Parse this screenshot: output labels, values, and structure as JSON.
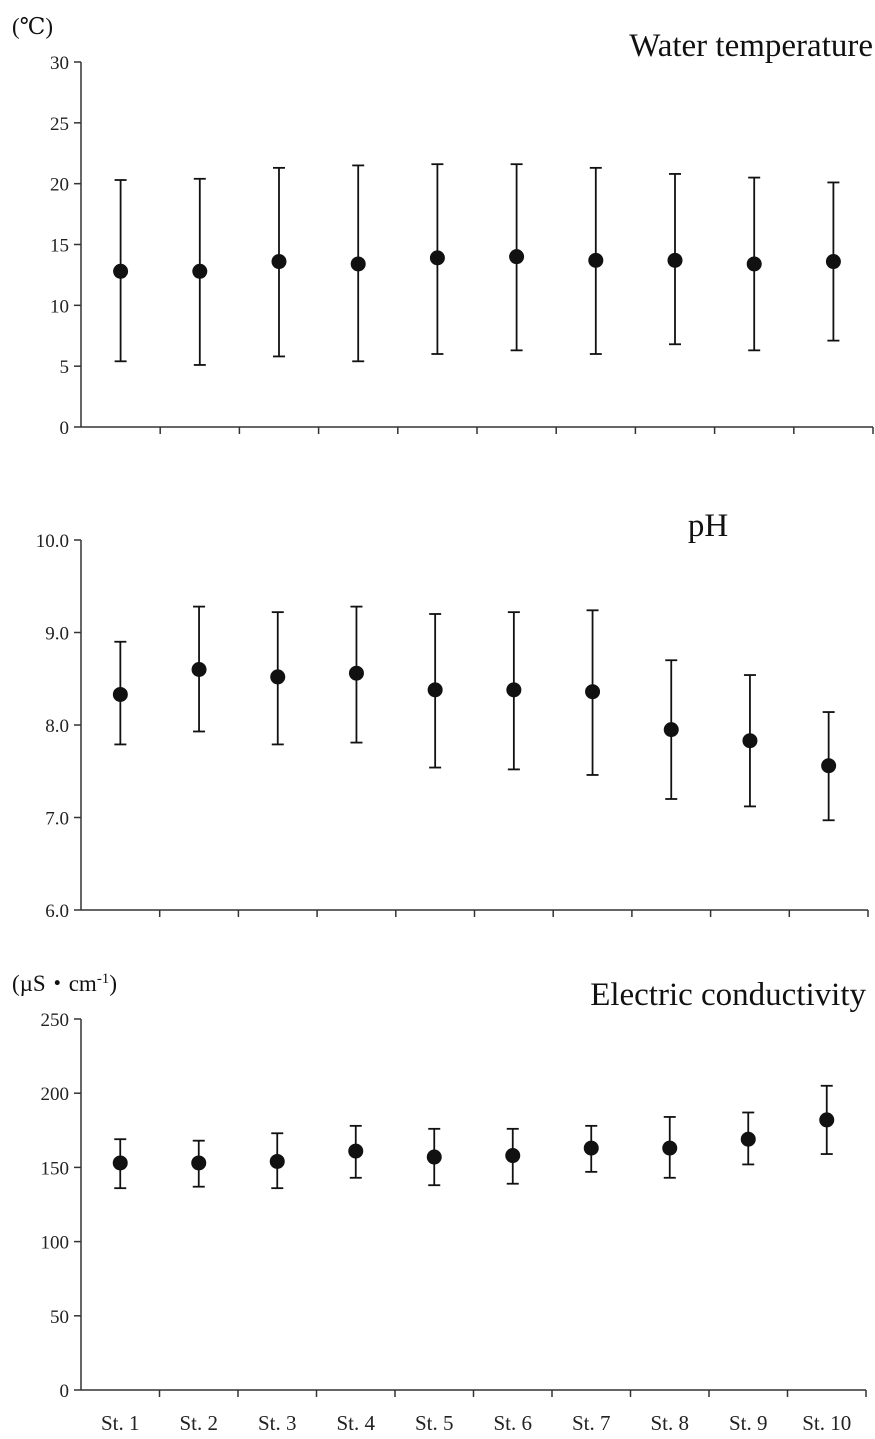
{
  "chart_data": [
    {
      "type": "scatter",
      "title": "Water temperature",
      "ylabel": "(℃)",
      "categories": [
        "St. 1",
        "St. 2",
        "St. 3",
        "St. 4",
        "St. 5",
        "St. 6",
        "St. 7",
        "St. 8",
        "St. 9",
        "St. 10"
      ],
      "ylim": [
        0,
        30
      ],
      "yticks": [
        0,
        5,
        10,
        15,
        20,
        25,
        30
      ],
      "ytick_labels": [
        "0",
        "5",
        "10",
        "15",
        "20",
        "25",
        "30"
      ],
      "values": [
        12.8,
        12.8,
        13.6,
        13.4,
        13.9,
        14.0,
        13.7,
        13.7,
        13.4,
        13.6
      ],
      "err_low": [
        5.4,
        5.1,
        5.8,
        5.4,
        6.0,
        6.3,
        6.0,
        6.8,
        6.3,
        7.1
      ],
      "err_high": [
        20.3,
        20.4,
        21.3,
        21.5,
        21.6,
        21.6,
        21.3,
        20.8,
        20.5,
        20.1
      ],
      "show_xlabels": false,
      "grid": false
    },
    {
      "type": "scatter",
      "title": "pH",
      "ylabel": "",
      "categories": [
        "St. 1",
        "St. 2",
        "St. 3",
        "St. 4",
        "St. 5",
        "St. 6",
        "St. 7",
        "St. 8",
        "St. 9",
        "St. 10"
      ],
      "ylim": [
        6.0,
        10.0
      ],
      "yticks": [
        6.0,
        7.0,
        8.0,
        9.0,
        10.0
      ],
      "ytick_labels": [
        "6.0",
        "7.0",
        "8.0",
        "9.0",
        "10.0"
      ],
      "values": [
        8.33,
        8.6,
        8.52,
        8.56,
        8.38,
        8.38,
        8.36,
        7.95,
        7.83,
        7.56
      ],
      "err_low": [
        7.79,
        7.93,
        7.79,
        7.81,
        7.54,
        7.52,
        7.46,
        7.2,
        7.12,
        6.97
      ],
      "err_high": [
        8.9,
        9.28,
        9.22,
        9.28,
        9.2,
        9.22,
        9.24,
        8.7,
        8.54,
        8.14
      ],
      "show_xlabels": false,
      "grid": false
    },
    {
      "type": "scatter",
      "title": "Electric conductivity",
      "ylabel": "(µS・cm-1)",
      "ylabel_main": "(µS・cm",
      "ylabel_sup": "-1",
      "ylabel_close": ")",
      "categories": [
        "St. 1",
        "St. 2",
        "St. 3",
        "St. 4",
        "St. 5",
        "St. 6",
        "St. 7",
        "St. 8",
        "St. 9",
        "St. 10"
      ],
      "ylim": [
        0,
        250
      ],
      "yticks": [
        0,
        50,
        100,
        150,
        200,
        250
      ],
      "ytick_labels": [
        "0",
        "50",
        "100",
        "150",
        "200",
        "250"
      ],
      "values": [
        153,
        153,
        154,
        161,
        157,
        158,
        163,
        163,
        169,
        182
      ],
      "err_low": [
        136,
        137,
        136,
        143,
        138,
        139,
        147,
        143,
        152,
        159
      ],
      "err_high": [
        169,
        168,
        173,
        178,
        176,
        176,
        178,
        184,
        187,
        205
      ],
      "show_xlabels": true,
      "grid": false
    }
  ]
}
